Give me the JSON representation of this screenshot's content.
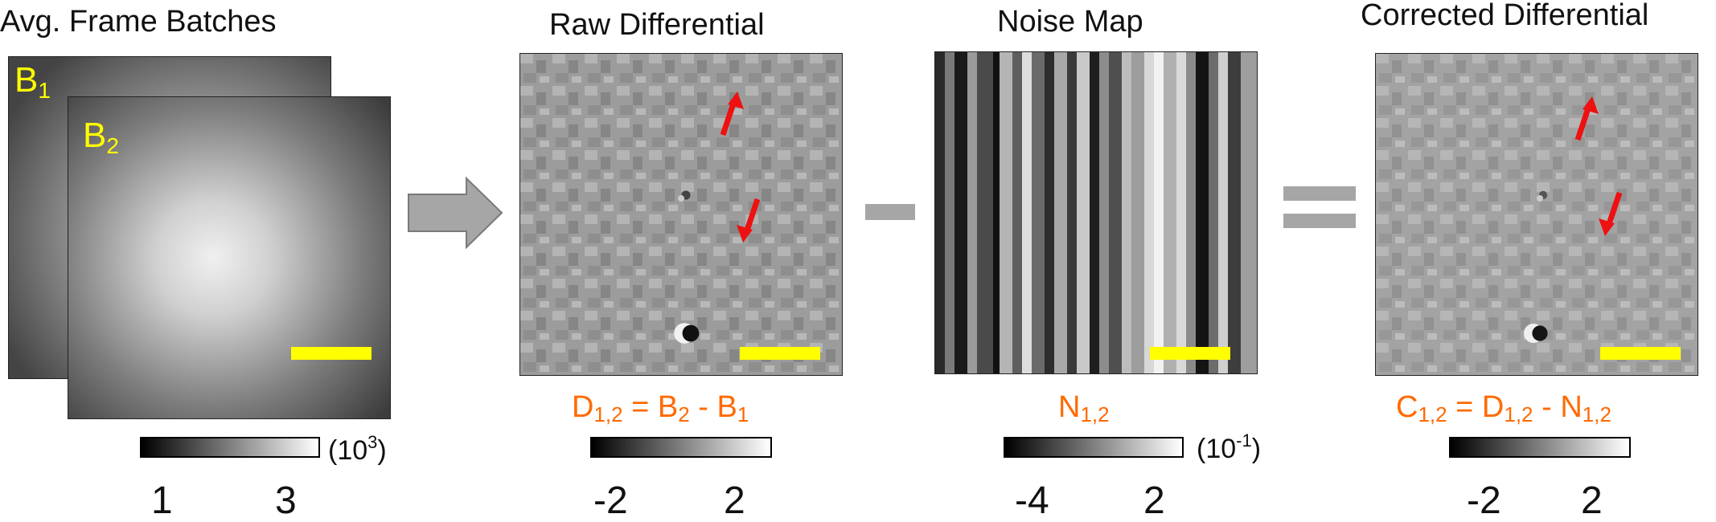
{
  "panels": {
    "avg": {
      "title": "Avg. Frame Batches",
      "batch1": {
        "base": "B",
        "sub": "1"
      },
      "batch2": {
        "base": "B",
        "sub": "2"
      },
      "colorbar": {
        "unit_base": "(10",
        "unit_exp": "3",
        "unit_close": ")",
        "ticks": [
          "1",
          "3"
        ]
      }
    },
    "raw": {
      "title": "Raw Differential",
      "formula": {
        "a": "D",
        "a_sub": "1,2",
        "eq": " = ",
        "b": "B",
        "b_sub": "2",
        "op": " - ",
        "c": "B",
        "c_sub": "1"
      },
      "colorbar": {
        "ticks": [
          "-2",
          "2"
        ]
      }
    },
    "noise": {
      "title": "Noise Map",
      "formula": {
        "a": "N",
        "a_sub": "1,2"
      },
      "colorbar": {
        "unit_base": "(10",
        "unit_exp": "-1",
        "unit_close": ")",
        "ticks": [
          "-4",
          "2"
        ]
      }
    },
    "corrected": {
      "title": "Corrected Differential",
      "formula": {
        "a": "C",
        "a_sub": "1,2",
        "eq": " = ",
        "b": "D",
        "b_sub": "1,2",
        "op": " - ",
        "c": "N",
        "c_sub": "1,2"
      },
      "colorbar": {
        "ticks": [
          "-2",
          "2"
        ]
      }
    }
  },
  "colors": {
    "formula": "#ff6a00",
    "scale_bar": "#ffff00",
    "batch_label": "#ffff00",
    "arrow": "#ee1111",
    "operator": "#a6a6a6"
  },
  "icons": {
    "process_arrow": "right-arrow-icon",
    "minus": "minus-icon",
    "equals": "equals-icon",
    "marker": "red-arrow-icon"
  }
}
